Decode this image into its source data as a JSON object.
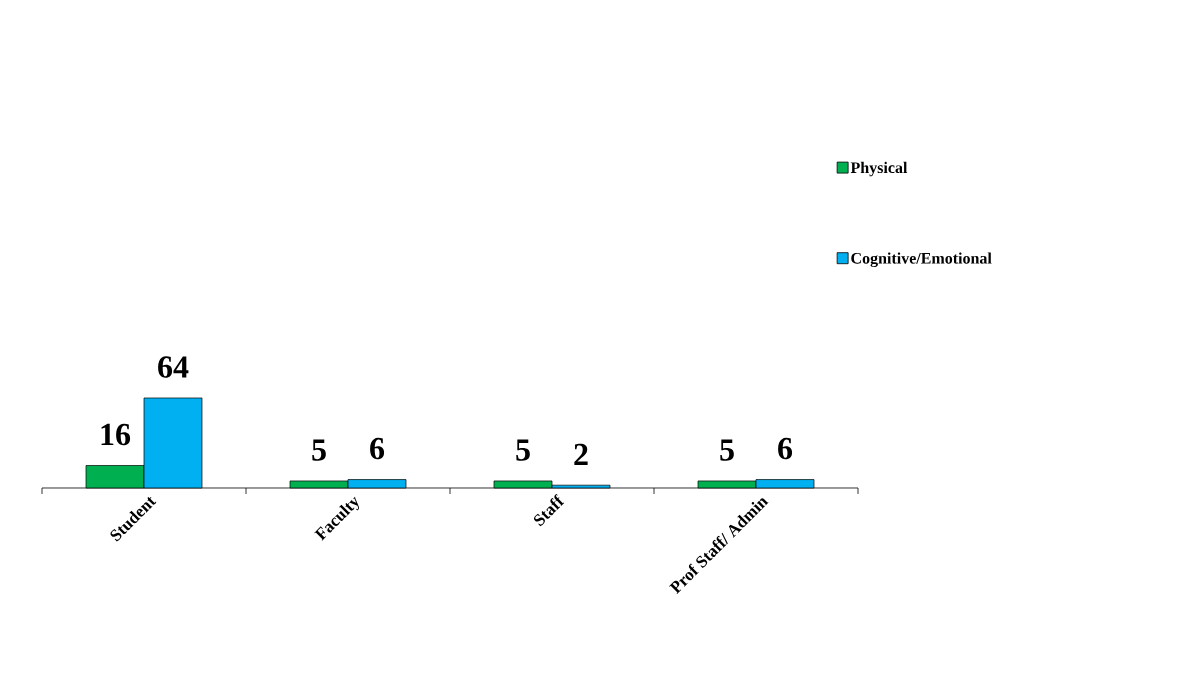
{
  "chart_data": {
    "type": "bar",
    "categories": [
      "Student",
      "Faculty",
      "Staff",
      "Prof Staff/ Admin"
    ],
    "series": [
      {
        "name": "Physical",
        "color": "#00b050",
        "values": [
          16,
          5,
          5,
          5
        ]
      },
      {
        "name": "Cognitive/Emotional",
        "color": "#00b0f0",
        "values": [
          64,
          6,
          2,
          6
        ]
      }
    ],
    "data_labels": true,
    "legend": "right"
  }
}
